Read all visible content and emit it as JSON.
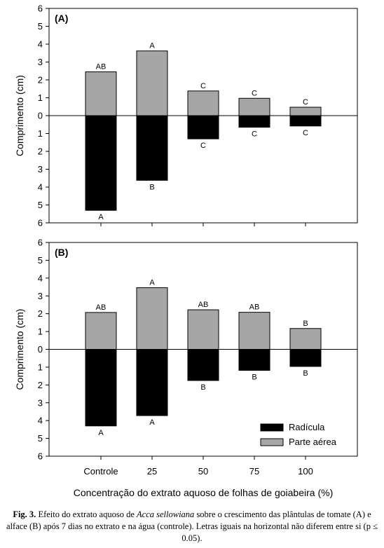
{
  "chart_data": [
    {
      "type": "bar",
      "panel_label": "(A)",
      "categories": [
        "Controle",
        "25",
        "50",
        "75",
        "100"
      ],
      "series": [
        {
          "name": "Parte aérea",
          "color": "#a6a6a6",
          "direction": "up",
          "values": [
            2.45,
            3.62,
            1.38,
            0.97,
            0.47
          ],
          "letters": [
            "AB",
            "A",
            "C",
            "C",
            "C"
          ]
        },
        {
          "name": "Radícula",
          "color": "#000000",
          "direction": "down",
          "values": [
            5.3,
            3.62,
            1.3,
            0.65,
            0.58
          ],
          "letters": [
            "A",
            "B",
            "C",
            "C",
            "C"
          ]
        }
      ],
      "ylabel": "Comprimento (cm)",
      "ylim": [
        -6,
        6
      ],
      "yticks": [
        "6",
        "5",
        "4",
        "3",
        "2",
        "1",
        "0",
        "1",
        "2",
        "3",
        "4",
        "5",
        "6"
      ],
      "grid": false
    },
    {
      "type": "bar",
      "panel_label": "(B)",
      "categories": [
        "Controle",
        "25",
        "50",
        "75",
        "100"
      ],
      "series": [
        {
          "name": "Parte aérea",
          "color": "#a6a6a6",
          "direction": "up",
          "values": [
            2.07,
            3.46,
            2.22,
            2.08,
            1.17
          ],
          "letters": [
            "AB",
            "A",
            "AB",
            "AB",
            "B"
          ]
        },
        {
          "name": "Radícula",
          "color": "#000000",
          "direction": "down",
          "values": [
            4.3,
            3.72,
            1.75,
            1.18,
            0.96
          ],
          "letters": [
            "A",
            "A",
            "B",
            "B",
            "B"
          ]
        }
      ],
      "ylabel": "Comprimento (cm)",
      "ylim": [
        -6,
        6
      ],
      "yticks": [
        "6",
        "5",
        "4",
        "3",
        "2",
        "1",
        "0",
        "1",
        "2",
        "3",
        "4",
        "5",
        "6"
      ],
      "grid": false,
      "legend": {
        "placement": "bottom-right",
        "entries": [
          {
            "label": "Radícula",
            "color": "#000000"
          },
          {
            "label": "Parte aérea",
            "color": "#a6a6a6"
          }
        ]
      }
    }
  ],
  "xlabel": "Concentração do extrato aquoso de folhas de goiabeira (%)",
  "caption": {
    "fig_label": "Fig. 3.",
    "text_before_species": " Efeito do extrato aquoso de ",
    "species": "Acca sellowiana",
    "text_after_species": " sobre o crescimento das plântulas de tomate (A) e alface (B) após 7 dias no extrato e na água (controle). Letras iguais na horizontal não diferem entre si (p ≤ 0.05)."
  }
}
